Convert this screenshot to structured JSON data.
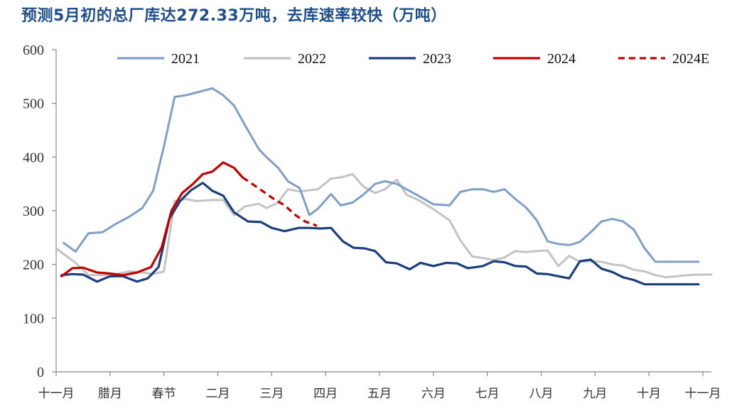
{
  "title": "预测5月初的总厂库达272.33万吨，去库速率较快（万吨）",
  "chart_data": {
    "type": "line",
    "title": "预测5月初的总厂库达272.33万吨，去库速率较快（万吨）",
    "xlabel": "",
    "ylabel": "",
    "ylim": [
      0,
      600
    ],
    "yticks": [
      "0",
      "100",
      "200",
      "300",
      "400",
      "500",
      "600"
    ],
    "xlim": [
      0,
      60
    ],
    "xticks": [
      {
        "label": "十一月",
        "pos": 0
      },
      {
        "label": "腊月",
        "pos": 5
      },
      {
        "label": "春节",
        "pos": 10
      },
      {
        "label": "二月",
        "pos": 15
      },
      {
        "label": "三月",
        "pos": 20
      },
      {
        "label": "四月",
        "pos": 25
      },
      {
        "label": "五月",
        "pos": 30
      },
      {
        "label": "六月",
        "pos": 35
      },
      {
        "label": "七月",
        "pos": 40
      },
      {
        "label": "八月",
        "pos": 45
      },
      {
        "label": "九月",
        "pos": 50
      },
      {
        "label": "十月",
        "pos": 55
      },
      {
        "label": "十一月",
        "pos": 60
      }
    ],
    "grid": false,
    "legend_position": "top",
    "series": [
      {
        "name": "2021",
        "color": "#7f9fc9",
        "dash": false,
        "x": [
          0.7,
          1.8,
          3,
          4.3,
          5.5,
          6.8,
          8,
          9,
          10,
          11,
          12,
          13,
          14.5,
          15.5,
          16.5,
          17.5,
          18.8,
          19.5,
          20.6,
          21.5,
          22.6,
          23.5,
          24.3,
          25.5,
          26.4,
          27.5,
          28.5,
          29.6,
          30.5,
          31.6,
          32.5,
          33.6,
          35,
          36.5,
          37.5,
          38.6,
          39.6,
          40.6,
          41.6,
          42.6,
          43.6,
          44.6,
          45.6,
          46.6,
          47.6,
          48.6,
          49.6,
          50.6,
          51.6,
          52.6,
          53.6,
          54.6,
          55.6,
          56.6,
          57.6,
          58.6,
          59.6
        ],
        "y": [
          240,
          224,
          258,
          260,
          275,
          289,
          305,
          337,
          420,
          512,
          515,
          520,
          528,
          515,
          496,
          460,
          415,
          400,
          380,
          355,
          342,
          292,
          304,
          331,
          310,
          315,
          330,
          350,
          355,
          350,
          340,
          328,
          312,
          310,
          335,
          340,
          340,
          335,
          340,
          322,
          306,
          282,
          243,
          238,
          236,
          242,
          260,
          280,
          285,
          280,
          265,
          230,
          205,
          205,
          205,
          205,
          205
        ]
      },
      {
        "name": "2022",
        "color": "#c3c3c3",
        "dash": false,
        "x": [
          0,
          1.8,
          3,
          4.3,
          5.5,
          6.8,
          8,
          9,
          10,
          11,
          12,
          13,
          14.5,
          15.5,
          16.5,
          17.5,
          18.8,
          19.5,
          20.6,
          21.5,
          22.6,
          23.5,
          24.3,
          25.5,
          26.4,
          27.5,
          28.5,
          29.6,
          30.5,
          31.6,
          32.5,
          33.6,
          35,
          36.5,
          37.5,
          38.6,
          39.6,
          40.6,
          41.6,
          42.6,
          43.6,
          44.6,
          45.6,
          46.6,
          47.6,
          48.6,
          49.6,
          50.6,
          51.6,
          52.6,
          53.6,
          54.6,
          55.6,
          56.6,
          57.6,
          58.6,
          59.6,
          60.8
        ],
        "y": [
          230,
          203,
          180,
          180,
          182,
          187,
          185,
          182,
          187,
          318,
          322,
          318,
          320,
          320,
          292,
          308,
          313,
          305,
          315,
          340,
          336,
          338,
          340,
          360,
          362,
          368,
          345,
          333,
          340,
          358,
          330,
          320,
          303,
          282,
          245,
          215,
          212,
          208,
          213,
          225,
          223,
          225,
          226,
          197,
          216,
          205,
          206,
          205,
          200,
          198,
          190,
          187,
          180,
          176,
          178,
          180,
          181,
          181
        ]
      },
      {
        "name": "2023",
        "color": "#1a3f7c",
        "dash": false,
        "x": [
          0.5,
          1.5,
          2.5,
          3.8,
          5,
          6.2,
          7.5,
          8.5,
          9.5,
          10.5,
          11.5,
          12.5,
          13.6,
          14.5,
          15.5,
          16.5,
          17.8,
          19,
          20,
          21.2,
          22.5,
          23.4,
          24.5,
          25.5,
          26.6,
          27.6,
          28.6,
          29.6,
          30.6,
          31.6,
          32.8,
          33.8,
          35,
          36.2,
          37.2,
          38.2,
          39.6,
          40.6,
          41.6,
          42.6,
          43.6,
          44.6,
          45.6,
          46.6,
          47.6,
          48.6,
          49.6,
          50.6,
          51.6,
          52.6,
          53.6,
          54.6,
          55.6,
          56.6,
          57.6,
          58.6,
          59.6
        ],
        "y": [
          180,
          182,
          181,
          168,
          178,
          178,
          168,
          174,
          195,
          285,
          318,
          338,
          352,
          337,
          328,
          297,
          280,
          279,
          268,
          262,
          268,
          268,
          267,
          268,
          243,
          231,
          230,
          225,
          204,
          202,
          191,
          203,
          197,
          203,
          202,
          193,
          197,
          206,
          204,
          197,
          196,
          183,
          182,
          178,
          174,
          206,
          209,
          192,
          186,
          176,
          171,
          163,
          163,
          163,
          163,
          163,
          163
        ]
      },
      {
        "name": "2024",
        "color": "#c00000",
        "dash": false,
        "x": [
          0.5,
          1.5,
          2.5,
          3.8,
          5,
          6.2,
          7.5,
          8.8,
          9.8,
          10.7,
          11.7,
          12.7,
          13.6,
          14.5,
          15.5,
          16.5,
          17.3
        ],
        "y": [
          178,
          193,
          194,
          185,
          183,
          180,
          185,
          195,
          232,
          300,
          333,
          350,
          368,
          373,
          390,
          380,
          362
        ]
      },
      {
        "name": "2024E",
        "color": "#c00000",
        "dash": true,
        "x": [
          17.3,
          18.2,
          19.2,
          20.2,
          21.2,
          22.2,
          23.1,
          24.2
        ],
        "y": [
          362,
          350,
          336,
          322,
          310,
          292,
          280,
          272
        ]
      }
    ]
  }
}
